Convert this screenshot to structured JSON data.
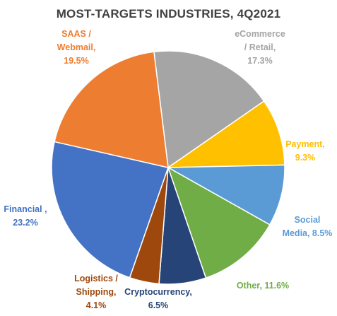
{
  "chart_data": {
    "type": "pie",
    "title": "MOST-TARGETS INDUSTRIES, 4Q2021",
    "legend": "none",
    "slices": [
      {
        "name": "eCommerce / Retail",
        "value": 17.3,
        "color": "#a5a5a5",
        "label_lines": [
          "eCommerce",
          "/ Retail,",
          "17.3%"
        ]
      },
      {
        "name": "Payment",
        "value": 9.3,
        "color": "#ffc000",
        "label_lines": [
          "Payment,",
          "9.3%"
        ]
      },
      {
        "name": "Social Media",
        "value": 8.5,
        "color": "#5b9bd5",
        "label_lines": [
          "Social",
          "Media, 8.5%"
        ]
      },
      {
        "name": "Other",
        "value": 11.6,
        "color": "#70ad47",
        "label_lines": [
          "Other, 11.6%"
        ]
      },
      {
        "name": "Cryptocurrency",
        "value": 6.5,
        "color": "#264478",
        "label_lines": [
          "Cryptocurrency,",
          "6.5%"
        ]
      },
      {
        "name": "Logistics / Shipping",
        "value": 4.1,
        "color": "#9e480e",
        "label_lines": [
          "Logistics /",
          "Shipping,",
          "4.1%"
        ]
      },
      {
        "name": "Financial",
        "value": 23.2,
        "color": "#4472c4",
        "label_lines": [
          "Financial ,",
          "23.2%"
        ]
      },
      {
        "name": "SAAS / Webmail",
        "value": 19.5,
        "color": "#ed7d31",
        "label_lines": [
          "SAAS /",
          "Webmail,",
          "19.5%"
        ]
      }
    ]
  }
}
